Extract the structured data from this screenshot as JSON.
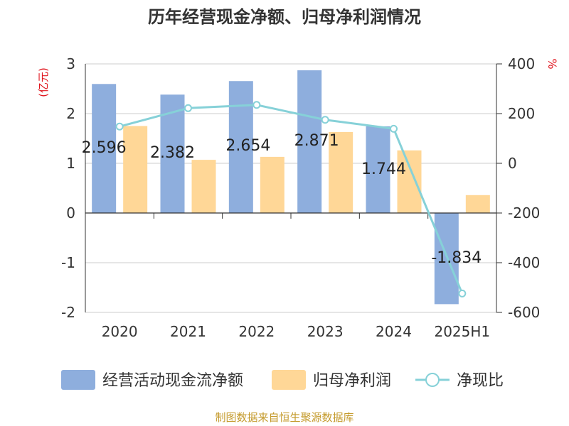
{
  "chart_data": {
    "type": "bar",
    "title": "历年经营现金净额、归母净利润情况",
    "left_unit": "(亿元)",
    "right_unit": "%",
    "categories": [
      "2020",
      "2021",
      "2022",
      "2023",
      "2024",
      "2025H1"
    ],
    "left_axis": {
      "ylim": [
        -2,
        3
      ],
      "ticks": [
        "3",
        "2",
        "1",
        "0",
        "-1",
        "-2"
      ]
    },
    "right_axis": {
      "ylim": [
        -600,
        400
      ],
      "ticks": [
        "400",
        "200",
        "0",
        "-200",
        "-400",
        "-600"
      ]
    },
    "series": [
      {
        "name": "经营活动现金流净额",
        "type": "bar",
        "axis": "left",
        "color": "#8eaedd",
        "values": [
          2.596,
          2.382,
          2.654,
          2.871,
          1.744,
          -1.834
        ],
        "labels": [
          "2.596",
          "2.382",
          "2.654",
          "2.871",
          "1.744",
          "-1.834"
        ]
      },
      {
        "name": "归母净利润",
        "type": "bar",
        "axis": "left",
        "color": "#ffd797",
        "values": [
          1.75,
          1.07,
          1.13,
          1.63,
          1.26,
          0.36
        ]
      },
      {
        "name": "净现比",
        "type": "line",
        "axis": "right",
        "color": "#86d1d8",
        "values": [
          148,
          222,
          235,
          175,
          139,
          -524
        ]
      }
    ],
    "grid": true,
    "legend_position": "bottom",
    "source": "制图数据来自恒生聚源数据库"
  }
}
